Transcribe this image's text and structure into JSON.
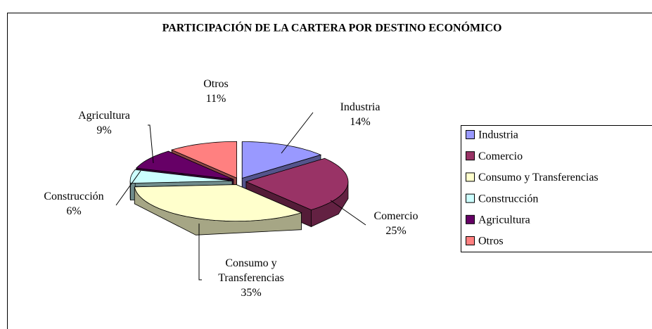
{
  "chart_data": {
    "type": "pie3d",
    "title": "PARTICIPACIÓN DE LA CARTERA POR DESTINO ECONÓMICO",
    "categories": [
      "Industria",
      "Comercio",
      "Consumo y Transferencias",
      "Construcción",
      "Agricultura",
      "Otros"
    ],
    "values": [
      14,
      25,
      35,
      6,
      9,
      11
    ],
    "value_labels": [
      "14%",
      "25%",
      "35%",
      "6%",
      "9%",
      "11%"
    ],
    "colors": [
      "#9999ff",
      "#993366",
      "#ffffcc",
      "#ccffff",
      "#660066",
      "#ff8080"
    ],
    "legend": "right"
  }
}
